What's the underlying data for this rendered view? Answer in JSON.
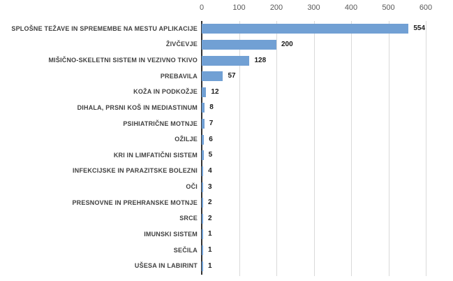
{
  "chart_data": {
    "type": "bar",
    "orientation": "horizontal",
    "title": "",
    "xlabel": "",
    "ylabel": "",
    "xlim": [
      0,
      600
    ],
    "x_ticks": [
      0,
      100,
      200,
      300,
      400,
      500,
      600
    ],
    "x_axis_position": "top",
    "grid": true,
    "legend": false,
    "value_labels": true,
    "categories": [
      "SPLOŠNE TEŽAVE IN SPREMEMBE NA MESTU APLIKACIJE",
      "ŽIVČEVJE",
      "MIŠIČNO-SKELETNI SISTEM IN VEZIVNO TKIVO",
      "PREBAVILA",
      "KOŽA IN PODKOŽJE",
      "DIHALA, PRSNI KOŠ IN MEDIASTINUM",
      "PSIHIATRIČNE MOTNJE",
      "OŽILJE",
      "KRI IN LIMFATIČNI SISTEM",
      "INFEKCIJSKE IN PARAZITSKE BOLEZNI",
      "OČI",
      "PRESNOVNE IN PREHRANSKE MOTNJE",
      "SRCE",
      "IMUNSKI SISTEM",
      "SEČILA",
      "UŠESA IN LABIRINT"
    ],
    "values": [
      554,
      200,
      128,
      57,
      12,
      8,
      7,
      6,
      5,
      4,
      3,
      2,
      2,
      1,
      1,
      1
    ],
    "colors": {
      "bar": "#71A0D4",
      "gridline": "#D9D9D9",
      "axis_line": "#333333",
      "tick_text": "#595959",
      "category_text": "#404040",
      "value_text": "#1a1a1a"
    }
  }
}
